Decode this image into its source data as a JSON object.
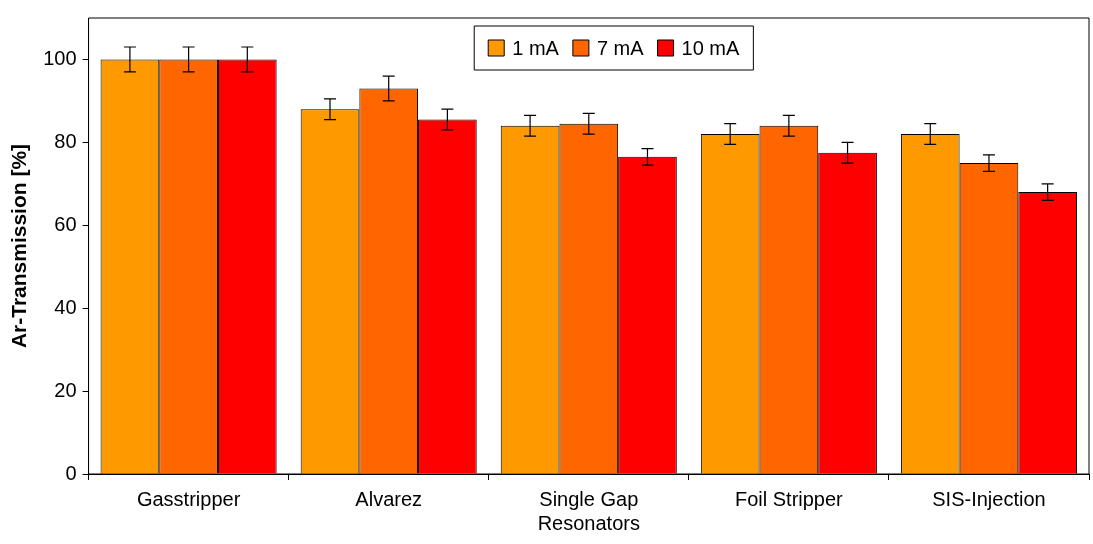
{
  "chart_data": {
    "type": "bar",
    "ylabel": "Ar-Transmission [%]",
    "categories": [
      "Gasstripper",
      "Alvarez",
      "Single Gap Resonators",
      "Foil Stripper",
      "SIS-Injection"
    ],
    "series": [
      {
        "name": "1 mA",
        "color": "#ff9900",
        "values": [
          100,
          88,
          84,
          82,
          82
        ],
        "errors": [
          3,
          2.5,
          2.5,
          2.5,
          2.5
        ]
      },
      {
        "name": "7 mA",
        "color": "#ff6600",
        "values": [
          100,
          93,
          84.5,
          84,
          75
        ],
        "errors": [
          3,
          3,
          2.5,
          2.5,
          2
        ]
      },
      {
        "name": "10 mA",
        "color": "#ff0000",
        "values": [
          100,
          85.5,
          76.5,
          77.5,
          68
        ],
        "errors": [
          3,
          2.5,
          2,
          2.5,
          2
        ]
      }
    ],
    "ylim": [
      0,
      110
    ],
    "yticks": [
      0,
      20,
      40,
      60,
      80,
      100
    ],
    "grid": false,
    "legend": "top"
  }
}
